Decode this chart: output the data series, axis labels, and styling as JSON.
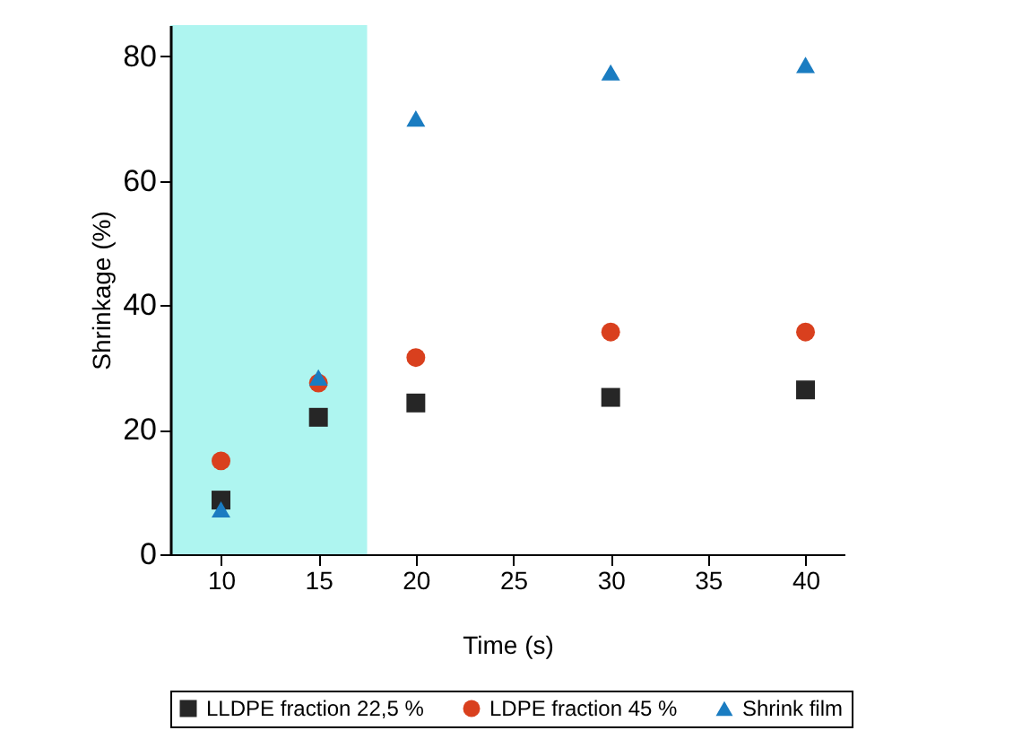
{
  "chart_data": {
    "type": "scatter",
    "xlabel": "Time (s)",
    "ylabel": "Shrinkage (%)",
    "x": [
      10,
      15,
      20,
      30,
      40
    ],
    "series": [
      {
        "name": "LLDPE fraction 22,5 %",
        "color": "#262626",
        "marker": "square",
        "values": [
          8.7,
          22,
          24.3,
          25.2,
          26.4
        ]
      },
      {
        "name": "LDPE fraction 45 %",
        "color": "#d9401e",
        "marker": "circle",
        "values": [
          15,
          27.5,
          31.6,
          35.7,
          35.7
        ]
      },
      {
        "name": "Shrink film",
        "color": "#1a7cc1",
        "marker": "triangle",
        "values": [
          7.2,
          28.4,
          70,
          77.4,
          78.6
        ]
      }
    ],
    "xlim": [
      7.4,
      42
    ],
    "xticks": [
      10,
      15,
      20,
      25,
      30,
      35,
      40
    ],
    "ylim": [
      0,
      85
    ],
    "yticks": [
      0,
      20,
      40,
      60,
      80
    ],
    "bands": [
      {
        "axis": "x",
        "from": 7.4,
        "to": 17.5,
        "color": "#aef5f0"
      }
    ],
    "legend": "bottom",
    "grid": false
  }
}
